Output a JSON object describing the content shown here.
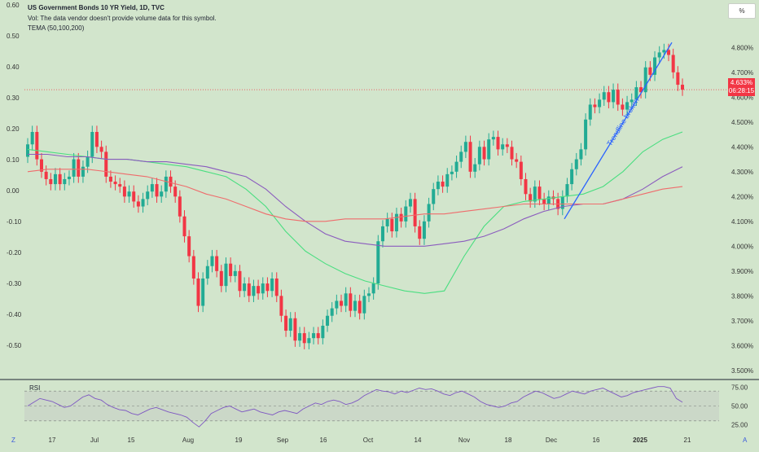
{
  "header": {
    "title": "US Government Bonds 10 YR Yield, 1D, TVC",
    "volume_note": "Vol: The data vendor doesn't provide volume data for this symbol.",
    "indicator": "TEMA (50,100,200)"
  },
  "scale_button": "%",
  "last_price": {
    "value": "4.633%",
    "countdown": "06:28:15"
  },
  "corner_left": "Z",
  "corner_right": "A",
  "annotation": "Trendline broken",
  "colors": {
    "background": "#d2e5cc",
    "up_candle": "#22ab94",
    "down_candle": "#f23645",
    "trendline": "#2962ff",
    "tema_fast": "#4ade80",
    "tema_mid": "#8b5cbe",
    "tema_slow": "#ef6c6c",
    "rsi_line": "#7e57c2"
  },
  "chart_data": [
    {
      "type": "line",
      "title": "US Government Bonds 10 YR Yield, 1D, TVC",
      "left_axis_ticks": [
        "0.60",
        "0.50",
        "0.40",
        "0.30",
        "0.20",
        "0.10",
        "0.00",
        "-0.10",
        "-0.20",
        "-0.30",
        "-0.40",
        "-0.50"
      ],
      "right_axis_ticks": [
        "4.800%",
        "4.700%",
        "4.600%",
        "4.500%",
        "4.400%",
        "4.300%",
        "4.200%",
        "4.100%",
        "4.000%",
        "3.900%",
        "3.800%",
        "3.700%",
        "3.600%",
        "3.500%"
      ],
      "ylim": [
        3.47,
        4.86
      ],
      "x_ticks": [
        "17",
        "Jul",
        "15",
        "Aug",
        "19",
        "Sep",
        "16",
        "Oct",
        "14",
        "Nov",
        "18",
        "Dec",
        "16",
        "2025",
        "21"
      ],
      "close_series": [
        4.41,
        4.46,
        4.35,
        4.3,
        4.27,
        4.25,
        4.29,
        4.25,
        4.27,
        4.28,
        4.35,
        4.28,
        4.32,
        4.36,
        4.46,
        4.4,
        4.38,
        4.28,
        4.26,
        4.25,
        4.24,
        4.2,
        4.22,
        4.18,
        4.16,
        4.19,
        4.22,
        4.25,
        4.2,
        4.22,
        4.28,
        4.24,
        4.2,
        4.12,
        4.04,
        3.96,
        3.87,
        3.76,
        3.87,
        3.92,
        3.96,
        3.9,
        3.84,
        3.93,
        3.88,
        3.9,
        3.82,
        3.85,
        3.8,
        3.84,
        3.81,
        3.85,
        3.82,
        3.87,
        3.8,
        3.72,
        3.66,
        3.71,
        3.62,
        3.65,
        3.61,
        3.63,
        3.65,
        3.63,
        3.68,
        3.72,
        3.75,
        3.78,
        3.76,
        3.81,
        3.74,
        3.78,
        3.73,
        3.8,
        3.81,
        3.85,
        4.02,
        4.08,
        4.11,
        4.06,
        4.13,
        4.1,
        4.16,
        4.19,
        4.08,
        4.03,
        4.1,
        4.17,
        4.23,
        4.26,
        4.24,
        4.29,
        4.3,
        4.34,
        4.38,
        4.42,
        4.3,
        4.33,
        4.4,
        4.35,
        4.43,
        4.44,
        4.39,
        4.41,
        4.4,
        4.35,
        4.34,
        4.27,
        4.21,
        4.18,
        4.24,
        4.19,
        4.17,
        4.2,
        4.19,
        4.15,
        4.2,
        4.25,
        4.31,
        4.35,
        4.39,
        4.51,
        4.57,
        4.56,
        4.59,
        4.62,
        4.58,
        4.63,
        4.57,
        4.55,
        4.58,
        4.59,
        4.64,
        4.62,
        4.72,
        4.69,
        4.76,
        4.78,
        4.79,
        4.77,
        4.7,
        4.65,
        4.63
      ],
      "series": [
        {
          "name": "TEMA 50",
          "values": [
            4.39,
            4.38,
            4.37,
            4.36,
            4.35,
            4.35,
            4.34,
            4.33,
            4.32,
            4.3,
            4.28,
            4.23,
            4.16,
            4.06,
            3.98,
            3.93,
            3.89,
            3.86,
            3.84,
            3.82,
            3.81,
            3.82,
            3.96,
            4.08,
            4.16,
            4.18,
            4.19,
            4.2,
            4.21,
            4.24,
            4.3,
            4.38,
            4.43,
            4.46
          ]
        },
        {
          "name": "TEMA 100",
          "values": [
            4.37,
            4.37,
            4.36,
            4.36,
            4.35,
            4.35,
            4.34,
            4.34,
            4.33,
            4.32,
            4.3,
            4.28,
            4.23,
            4.16,
            4.1,
            4.05,
            4.02,
            4.01,
            4.0,
            4.0,
            4.0,
            4.01,
            4.02,
            4.04,
            4.07,
            4.11,
            4.14,
            4.16,
            4.17,
            4.17,
            4.19,
            4.23,
            4.28,
            4.32
          ]
        },
        {
          "name": "TEMA 200",
          "values": [
            4.3,
            4.31,
            4.31,
            4.31,
            4.3,
            4.29,
            4.28,
            4.26,
            4.24,
            4.21,
            4.19,
            4.16,
            4.13,
            4.11,
            4.1,
            4.1,
            4.11,
            4.11,
            4.11,
            4.12,
            4.13,
            4.13,
            4.14,
            4.15,
            4.16,
            4.17,
            4.17,
            4.17,
            4.17,
            4.17,
            4.19,
            4.21,
            4.23,
            4.24
          ]
        }
      ],
      "trendline": {
        "start": [
          "Dec 9",
          4.11
        ],
        "end": [
          "Jan 17",
          4.82
        ]
      }
    },
    {
      "type": "line",
      "title": "RSI",
      "right_axis_ticks": [
        "75.00",
        "50.00",
        "25.00"
      ],
      "ylim": [
        20,
        80
      ],
      "bands": [
        30,
        50,
        70
      ],
      "values": [
        50,
        55,
        60,
        58,
        56,
        52,
        48,
        50,
        56,
        62,
        65,
        60,
        58,
        52,
        48,
        45,
        44,
        40,
        38,
        42,
        46,
        48,
        45,
        42,
        40,
        38,
        35,
        28,
        22,
        30,
        40,
        44,
        48,
        50,
        46,
        42,
        44,
        46,
        42,
        40,
        38,
        42,
        44,
        42,
        40,
        46,
        50,
        54,
        52,
        56,
        58,
        56,
        52,
        54,
        58,
        64,
        68,
        72,
        70,
        69,
        66,
        70,
        68,
        71,
        74,
        72,
        73,
        70,
        66,
        64,
        68,
        70,
        66,
        62,
        56,
        52,
        50,
        48,
        50,
        54,
        56,
        62,
        66,
        70,
        68,
        64,
        60,
        62,
        66,
        70,
        68,
        66,
        70,
        72,
        74,
        70,
        66,
        62,
        64,
        68,
        70,
        72,
        74,
        76,
        76,
        74,
        60,
        55
      ]
    }
  ]
}
